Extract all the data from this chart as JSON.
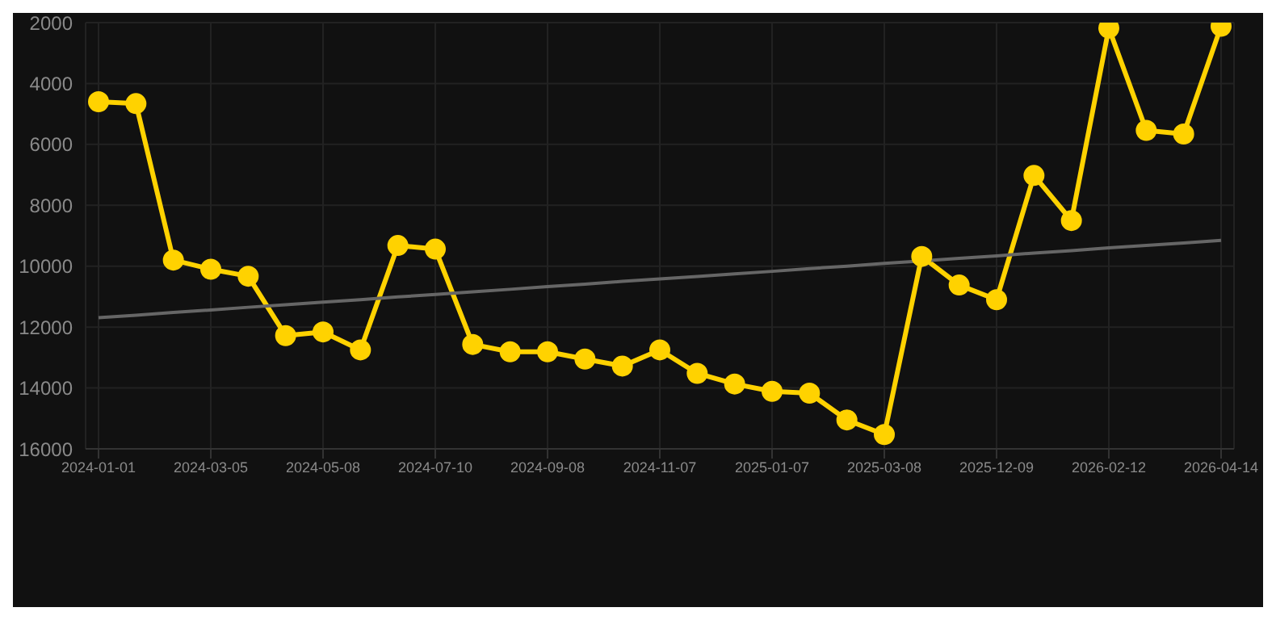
{
  "chart_data": {
    "type": "line",
    "categories": [
      "2024-01-01",
      null,
      null,
      "2024-03-05",
      null,
      null,
      "2024-05-08",
      null,
      null,
      "2024-07-10",
      null,
      null,
      "2024-09-08",
      null,
      null,
      "2024-11-07",
      null,
      null,
      "2025-01-07",
      null,
      null,
      "2025-03-08",
      null,
      null,
      "2025-12-09",
      null,
      null,
      "2026-02-12",
      null,
      null,
      "2026-04-14"
    ],
    "series": [
      {
        "color": "#ffd200",
        "values": [
          4600,
          4660,
          9800,
          10100,
          10330,
          12280,
          12160,
          12750,
          9320,
          9440,
          12570,
          12810,
          12810,
          13050,
          13280,
          12750,
          13520,
          13870,
          14110,
          14170,
          15050,
          15530,
          9680,
          10620,
          11100,
          7020,
          8500,
          2180,
          5540,
          5660,
          2120
        ]
      },
      {
        "type": "line",
        "color": "#666666",
        "marker": "none",
        "values": [
          11690,
          11610,
          11520,
          11440,
          11350,
          11270,
          11180,
          11100,
          11010,
          10930,
          10840,
          10760,
          10670,
          10590,
          10500,
          10420,
          10340,
          10250,
          10170,
          10080,
          10000,
          9910,
          9830,
          9740,
          9660,
          9570,
          9490,
          9400,
          9320,
          9240,
          9150
        ]
      }
    ],
    "ylim": [
      16000,
      2000
    ],
    "yticks": [
      2000,
      4000,
      6000,
      8000,
      10000,
      12000,
      14000,
      16000
    ],
    "grid": true,
    "legend": false,
    "marker": "circle",
    "line_style": "solid"
  }
}
